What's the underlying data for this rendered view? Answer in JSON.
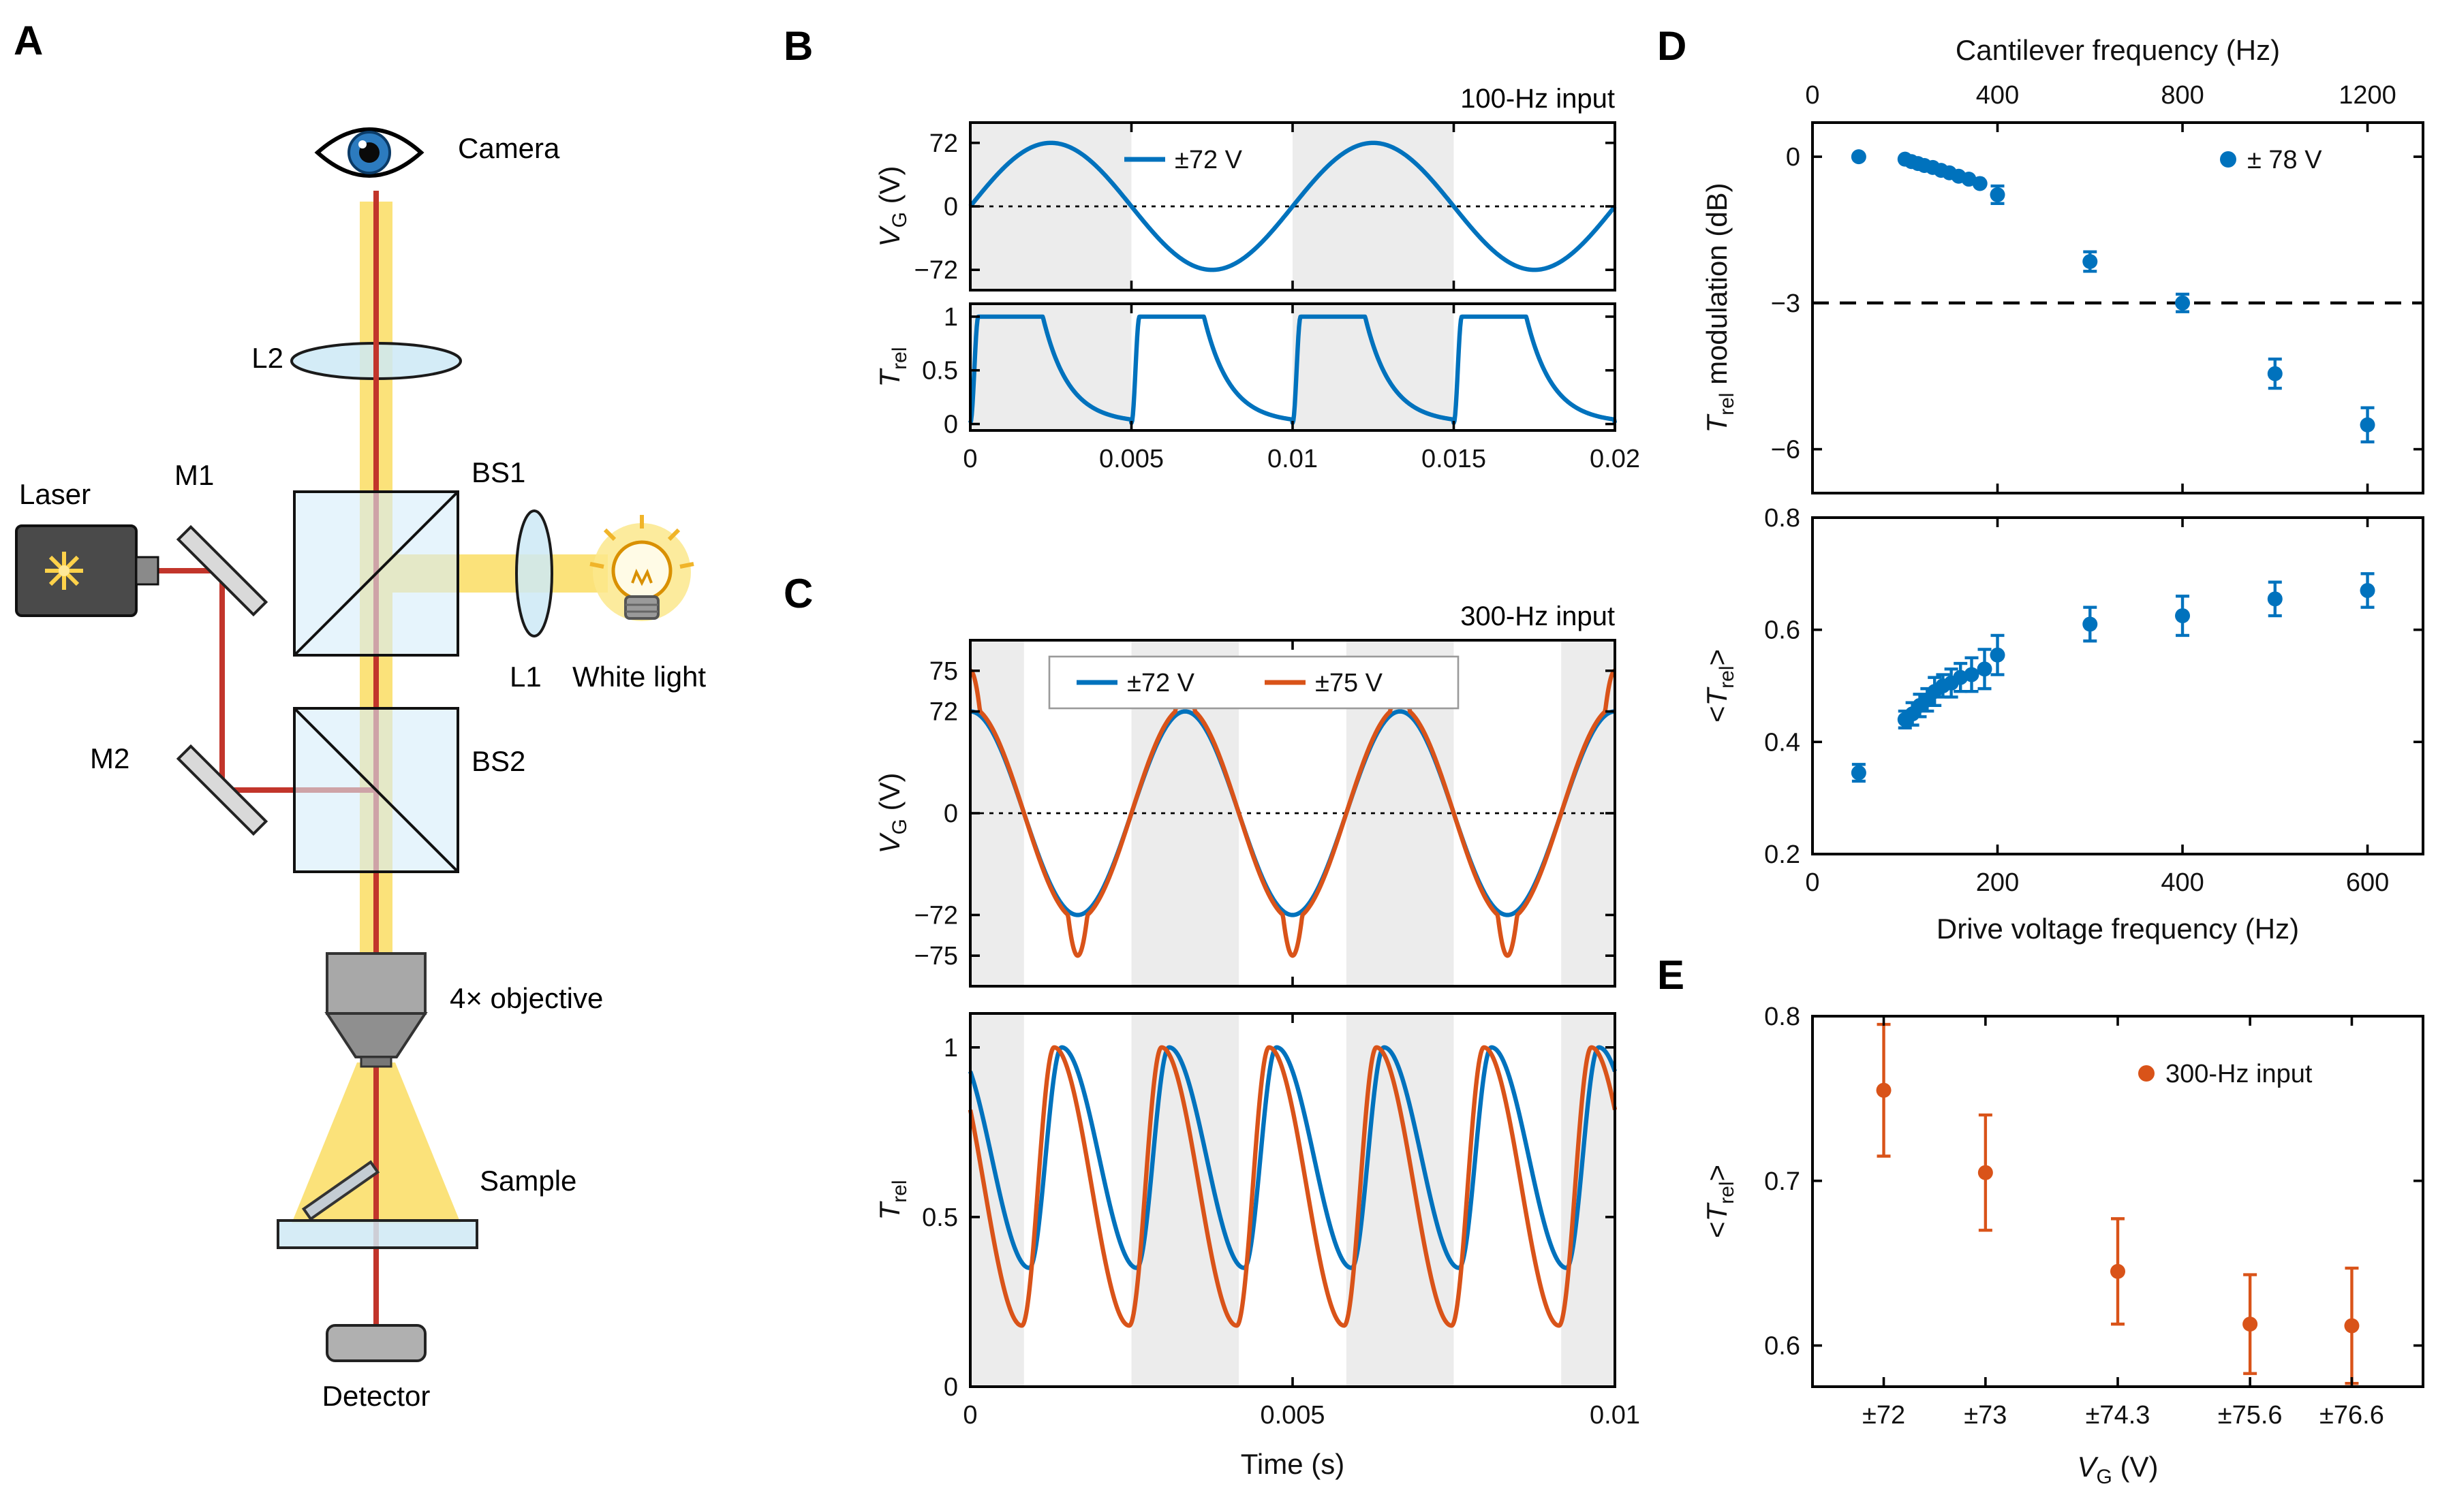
{
  "figure": {
    "panel_labels": {
      "a": "A",
      "b": "B",
      "c": "C",
      "d": "D",
      "e": "E"
    }
  },
  "colors": {
    "blue": "#0072BD",
    "orange": "#D95319",
    "band": "#ececec",
    "beam_yellow": "#FBE27A",
    "laser_red": "#C2352B"
  },
  "diagram": {
    "camera": "Camera",
    "l2": "L2",
    "bs1": "BS1",
    "laser": "Laser",
    "m1": "M1",
    "l1": "L1",
    "white_light": "White light",
    "m2": "M2",
    "bs2": "BS2",
    "objective": "4× objective",
    "sample": "Sample",
    "detector": "Detector"
  },
  "chart_data": [
    {
      "id": "B_voltage",
      "type": "line",
      "annotation": "100-Hz input",
      "ylabel": [
        {
          "t": "V",
          "i": true
        },
        {
          "t": "G",
          "sub": true
        },
        {
          "t": " (V)"
        }
      ],
      "x": {
        "min": 0,
        "max": 0.02,
        "tick_values": [
          0,
          0.005,
          0.01,
          0.015,
          0.02
        ],
        "ticks": [
          "0",
          "0.005",
          "0.01",
          "0.015",
          "0.02"
        ],
        "show_labels": false
      },
      "y": {
        "min": -95,
        "max": 95,
        "tick_values": [
          72,
          0,
          -72
        ],
        "ticks": [
          "72",
          "0",
          "−72"
        ]
      },
      "zero_line": true,
      "bands": [
        [
          0,
          0.005
        ],
        [
          0.01,
          0.015
        ]
      ],
      "series": [
        {
          "name": "±72 V",
          "color": "#0072BD",
          "gen": {
            "kind": "sine",
            "amplitude": 72,
            "frequency_hz": 100,
            "phase_deg": 0,
            "t0": 0,
            "t1": 0.02
          }
        }
      ],
      "legend": {
        "items": [
          {
            "label": "±72 V",
            "marker": "line",
            "color": "#0072BD"
          }
        ]
      }
    },
    {
      "id": "B_transmission",
      "type": "line",
      "ylabel": [
        {
          "t": "T",
          "i": true
        },
        {
          "t": "rel",
          "sub": true
        }
      ],
      "x": {
        "min": 0,
        "max": 0.02,
        "tick_values": [
          0,
          0.005,
          0.01,
          0.015,
          0.02
        ],
        "ticks": [
          "0",
          "0.005",
          "0.01",
          "0.015",
          "0.02"
        ]
      },
      "y": {
        "min": -0.06,
        "max": 1.12,
        "tick_values": [
          0,
          0.5,
          1
        ],
        "ticks": [
          "0",
          "0.5",
          "1"
        ]
      },
      "bands": [
        [
          0,
          0.005
        ],
        [
          0.01,
          0.015
        ]
      ],
      "series": [
        {
          "name": "±72 V",
          "color": "#0072BD",
          "gen": {
            "kind": "pulse",
            "period_s": 0.005,
            "rise_frac": 0.05,
            "plateau_frac": 0.45,
            "decay_tau": 0.16,
            "min": 0.01,
            "max": 1,
            "t0": 0,
            "t1": 0.02
          }
        }
      ]
    },
    {
      "id": "C_voltage",
      "type": "line",
      "annotation": "300-Hz input",
      "ylabel": [
        {
          "t": "V",
          "i": true
        },
        {
          "t": "G",
          "sub": true
        },
        {
          "t": " (V)"
        }
      ],
      "x": {
        "min": 0,
        "max": 0.01,
        "tick_values": [
          0,
          0.005,
          0.01
        ],
        "ticks": [
          "0",
          "0.005",
          "0.01"
        ],
        "show_labels": false
      },
      "y": {
        "piecewise": [
          [
            -79,
            -1
          ],
          [
            -75,
            -0.84
          ],
          [
            -72,
            -0.6
          ],
          [
            0,
            0
          ],
          [
            72,
            0.6
          ],
          [
            75,
            0.84
          ],
          [
            79,
            1
          ]
        ],
        "posmin": -1.02,
        "posmax": 1.02,
        "tick_values": [
          75,
          72,
          0,
          -72,
          -75
        ],
        "ticks": [
          "75",
          "72",
          "0",
          "−72",
          "−75"
        ]
      },
      "zero_line": true,
      "bands": [
        [
          0,
          0.000833
        ],
        [
          0.0025,
          0.004167
        ],
        [
          0.005833,
          0.0075
        ],
        [
          0.009167,
          0.01
        ]
      ],
      "series": [
        {
          "name": "±72 V",
          "color": "#0072BD",
          "gen": {
            "kind": "sine",
            "amplitude": 72,
            "frequency_hz": 300,
            "phase_deg": 90,
            "t0": 0,
            "t1": 0.01
          }
        },
        {
          "name": "±75 V",
          "color": "#D95319",
          "gen": {
            "kind": "sine",
            "amplitude": 75,
            "frequency_hz": 300,
            "phase_deg": 90,
            "t0": 0,
            "t1": 0.01
          }
        }
      ],
      "legend": {
        "box": true,
        "items": [
          {
            "label": "±72 V",
            "marker": "line",
            "color": "#0072BD"
          },
          {
            "label": "±75 V",
            "marker": "line",
            "color": "#D95319"
          }
        ]
      }
    },
    {
      "id": "C_transmission",
      "type": "line",
      "ylabel": [
        {
          "t": "T",
          "i": true
        },
        {
          "t": "rel",
          "sub": true
        }
      ],
      "xlabel": [
        {
          "t": "Time (s)"
        }
      ],
      "x": {
        "min": 0,
        "max": 0.01,
        "tick_values": [
          0,
          0.005,
          0.01
        ],
        "ticks": [
          "0",
          "0.005",
          "0.01"
        ]
      },
      "y": {
        "min": 0,
        "max": 1.1,
        "tick_values": [
          0,
          0.5,
          1
        ],
        "ticks": [
          "0",
          "0.5",
          "1"
        ]
      },
      "bands": [
        [
          0,
          0.000833
        ],
        [
          0.0025,
          0.004167
        ],
        [
          0.005833,
          0.0075
        ],
        [
          0.009167,
          0.01
        ]
      ],
      "series": [
        {
          "name": "±72 V",
          "color": "#0072BD",
          "gen": {
            "kind": "bump",
            "period_s": 0.0016667,
            "phase": 0.45,
            "rise_frac": 0.3,
            "min": 0.35,
            "max": 1,
            "t0": 0,
            "t1": 0.01
          }
        },
        {
          "name": "±75 V",
          "color": "#D95319",
          "gen": {
            "kind": "bump",
            "period_s": 0.0016667,
            "phase": 0.52,
            "rise_frac": 0.3,
            "min": 0.18,
            "max": 1,
            "t0": 0,
            "t1": 0.01
          }
        }
      ]
    },
    {
      "id": "D_modulation",
      "type": "scatter",
      "top_axis_title": [
        {
          "t": "Cantilever frequency (Hz)"
        }
      ],
      "ylabel": [
        {
          "t": "T",
          "i": true
        },
        {
          "t": "rel",
          "sub": true
        },
        {
          "t": " modulation (dB)"
        }
      ],
      "x": {
        "min": 0,
        "max": 660,
        "tick_values": [
          0,
          200,
          400,
          600
        ],
        "ticks": [
          "0",
          "200",
          "400",
          "600"
        ],
        "show_labels": false,
        "top_ticks": {
          "values": [
            0,
            200,
            400,
            600
          ],
          "labels": [
            "0",
            "400",
            "800",
            "1200"
          ]
        }
      },
      "y": {
        "min": -6.9,
        "max": 0.7,
        "tick_values": [
          0,
          -3,
          -6
        ],
        "ticks": [
          "0",
          "−3",
          "−6"
        ]
      },
      "hlines": [
        {
          "y": -3,
          "dash": "12,8"
        }
      ],
      "scatter": [
        {
          "name": "± 78 V",
          "color": "#0072BD",
          "points": [
            [
              50,
              0,
              0
            ],
            [
              100,
              -0.05,
              0
            ],
            [
              107,
              -0.1,
              0
            ],
            [
              114,
              -0.14,
              0
            ],
            [
              121,
              -0.18,
              0
            ],
            [
              130,
              -0.22,
              0
            ],
            [
              139,
              -0.28,
              0
            ],
            [
              148,
              -0.33,
              0
            ],
            [
              158,
              -0.4,
              0
            ],
            [
              169,
              -0.46,
              0
            ],
            [
              181,
              -0.55,
              0
            ],
            [
              200,
              -0.78,
              0.18
            ],
            [
              300,
              -2.15,
              0.2
            ],
            [
              400,
              -3.0,
              0.18
            ],
            [
              500,
              -4.45,
              0.3
            ],
            [
              600,
              -5.5,
              0.35
            ]
          ]
        }
      ],
      "legend": {
        "items": [
          {
            "label": "± 78 V",
            "marker": "dot",
            "color": "#0072BD"
          }
        ]
      }
    },
    {
      "id": "D_mean",
      "type": "scatter",
      "ylabel": [
        {
          "t": "<"
        },
        {
          "t": "T",
          "i": true
        },
        {
          "t": "rel",
          "sub": true
        },
        {
          "t": ">"
        }
      ],
      "xlabel": [
        {
          "t": "Drive voltage frequency (Hz)"
        }
      ],
      "x": {
        "min": 0,
        "max": 660,
        "tick_values": [
          0,
          200,
          400,
          600
        ],
        "ticks": [
          "0",
          "200",
          "400",
          "600"
        ]
      },
      "y": {
        "min": 0.2,
        "max": 0.8,
        "tick_values": [
          0.2,
          0.4,
          0.6,
          0.8
        ],
        "ticks": [
          "0.2",
          "0.4",
          "0.6",
          "0.8"
        ]
      },
      "scatter": [
        {
          "name": "± 78 V",
          "color": "#0072BD",
          "points": [
            [
              50,
              0.345,
              0.015
            ],
            [
              100,
              0.44,
              0.015
            ],
            [
              108,
              0.45,
              0.02
            ],
            [
              116,
              0.465,
              0.02
            ],
            [
              124,
              0.475,
              0.02
            ],
            [
              132,
              0.49,
              0.025
            ],
            [
              141,
              0.5,
              0.02
            ],
            [
              150,
              0.505,
              0.025
            ],
            [
              160,
              0.515,
              0.025
            ],
            [
              172,
              0.52,
              0.03
            ],
            [
              186,
              0.53,
              0.035
            ],
            [
              200,
              0.555,
              0.035
            ],
            [
              300,
              0.61,
              0.03
            ],
            [
              400,
              0.625,
              0.035
            ],
            [
              500,
              0.655,
              0.03
            ],
            [
              600,
              0.67,
              0.03
            ]
          ]
        }
      ]
    },
    {
      "id": "E_mean",
      "type": "scatter",
      "ylabel": [
        {
          "t": "<"
        },
        {
          "t": "T",
          "i": true
        },
        {
          "t": "rel",
          "sub": true
        },
        {
          "t": ">"
        }
      ],
      "xlabel": [
        {
          "t": "V",
          "i": true
        },
        {
          "t": "G",
          "sub": true
        },
        {
          "t": " (V)"
        }
      ],
      "x": {
        "min": 71.3,
        "max": 77.3,
        "tick_values": [
          72,
          73,
          74.3,
          75.6,
          76.6
        ],
        "ticks": [
          "±72",
          "±73",
          "±74.3",
          "±75.6",
          "±76.6"
        ]
      },
      "y": {
        "min": 0.575,
        "max": 0.8,
        "tick_values": [
          0.6,
          0.7,
          0.8
        ],
        "ticks": [
          "0.6",
          "0.7",
          "0.8"
        ]
      },
      "scatter": [
        {
          "name": "300-Hz input",
          "color": "#D95319",
          "points": [
            [
              72,
              0.755,
              0.04
            ],
            [
              73,
              0.705,
              0.035
            ],
            [
              74.3,
              0.645,
              0.032
            ],
            [
              75.6,
              0.613,
              0.03
            ],
            [
              76.6,
              0.612,
              0.035
            ]
          ]
        }
      ],
      "legend": {
        "items": [
          {
            "label": "300-Hz input",
            "marker": "dot",
            "color": "#D95319"
          }
        ]
      }
    }
  ]
}
